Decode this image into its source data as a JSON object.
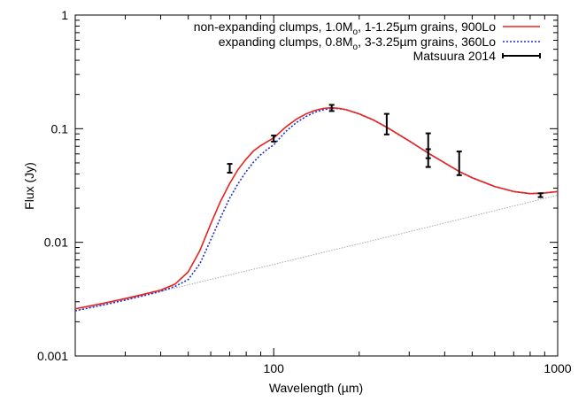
{
  "chart_data": {
    "type": "line",
    "title": "",
    "xlabel": "Wavelength (µm)",
    "ylabel": "Flux (Jy)",
    "xscale": "log",
    "yscale": "log",
    "xlim": [
      20,
      1000
    ],
    "ylim": [
      0.001,
      1
    ],
    "x_tick_labels": [
      "100",
      "1000"
    ],
    "y_tick_labels": [
      "1",
      "0.1",
      "0.01",
      "0.001"
    ],
    "grid": false,
    "legend_position": "top-right",
    "legend": [
      {
        "parts": [
          "non-expanding clumps, 1.0M",
          "o",
          ", 1-1.25µm grains, 900Lo"
        ],
        "style": "solid",
        "color": "#e8231f"
      },
      {
        "parts": [
          "expanding clumps, 0.8M",
          "o",
          ", 3-3.25µm grains, 360Lo"
        ],
        "style": "dotted",
        "color": "#1f2fd0"
      },
      {
        "parts": [
          "Matsuura 2014"
        ],
        "style": "errorbar",
        "color": "#000000"
      }
    ],
    "series": [
      {
        "name": "non-expanding clumps, 1.0Mo, 1-1.25µm grains, 900Lo",
        "color": "#e8231f",
        "style": "solid",
        "x": [
          20,
          25,
          30,
          35,
          40,
          45,
          50,
          55,
          60,
          65,
          70,
          75,
          80,
          85,
          90,
          95,
          100,
          110,
          120,
          130,
          140,
          150,
          160,
          170,
          180,
          200,
          225,
          250,
          300,
          350,
          400,
          450,
          500,
          600,
          700,
          800,
          900,
          1000
        ],
        "y": [
          0.0026,
          0.0029,
          0.0032,
          0.0035,
          0.0038,
          0.0043,
          0.0055,
          0.0085,
          0.0145,
          0.023,
          0.033,
          0.044,
          0.054,
          0.064,
          0.071,
          0.077,
          0.083,
          0.103,
          0.121,
          0.135,
          0.145,
          0.151,
          0.153,
          0.151,
          0.147,
          0.135,
          0.119,
          0.103,
          0.078,
          0.061,
          0.05,
          0.042,
          0.037,
          0.031,
          0.028,
          0.0268,
          0.0272,
          0.028
        ]
      },
      {
        "name": "expanding clumps, 0.8Mo, 3-3.25µm grains, 360Lo",
        "color": "#1f2fd0",
        "style": "dotted",
        "x": [
          20,
          25,
          30,
          35,
          40,
          45,
          50,
          55,
          60,
          65,
          70,
          75,
          80,
          85,
          90,
          95,
          100,
          110,
          120,
          130,
          140,
          150,
          160,
          170,
          180,
          200,
          225,
          250,
          300,
          350,
          400,
          450,
          500,
          600,
          700,
          800,
          900,
          1000
        ],
        "y": [
          0.0025,
          0.0028,
          0.0031,
          0.0034,
          0.0037,
          0.0041,
          0.0047,
          0.0065,
          0.0105,
          0.0165,
          0.0245,
          0.033,
          0.042,
          0.051,
          0.059,
          0.066,
          0.072,
          0.094,
          0.113,
          0.128,
          0.14,
          0.147,
          0.151,
          0.15,
          0.147,
          0.135,
          0.119,
          0.103,
          0.078,
          0.061,
          0.05,
          0.042,
          0.037,
          0.031,
          0.028,
          0.0268,
          0.0272,
          0.028
        ]
      },
      {
        "name": "",
        "color": "#aaaaaa",
        "style": "dotted-thin",
        "x": [
          20,
          40,
          100,
          300,
          1000
        ],
        "y": [
          0.0025,
          0.0037,
          0.0064,
          0.0124,
          0.026
        ]
      },
      {
        "name": "Matsuura 2014",
        "color": "#000000",
        "style": "errorbar",
        "points": [
          {
            "x": 70,
            "y": 0.045,
            "ylow": 0.041,
            "yhigh": 0.049
          },
          {
            "x": 100,
            "y": 0.082,
            "ylow": 0.077,
            "yhigh": 0.087
          },
          {
            "x": 160,
            "y": 0.152,
            "ylow": 0.143,
            "yhigh": 0.162
          },
          {
            "x": 250,
            "y": 0.11,
            "ylow": 0.089,
            "yhigh": 0.135
          },
          {
            "x": 350,
            "y": 0.07,
            "ylow": 0.055,
            "yhigh": 0.091
          },
          {
            "x": 350,
            "y": 0.055,
            "ylow": 0.046,
            "yhigh": 0.066
          },
          {
            "x": 450,
            "y": 0.05,
            "ylow": 0.039,
            "yhigh": 0.063
          },
          {
            "x": 870,
            "y": 0.026,
            "ylow": 0.025,
            "yhigh": 0.027
          }
        ]
      }
    ]
  }
}
